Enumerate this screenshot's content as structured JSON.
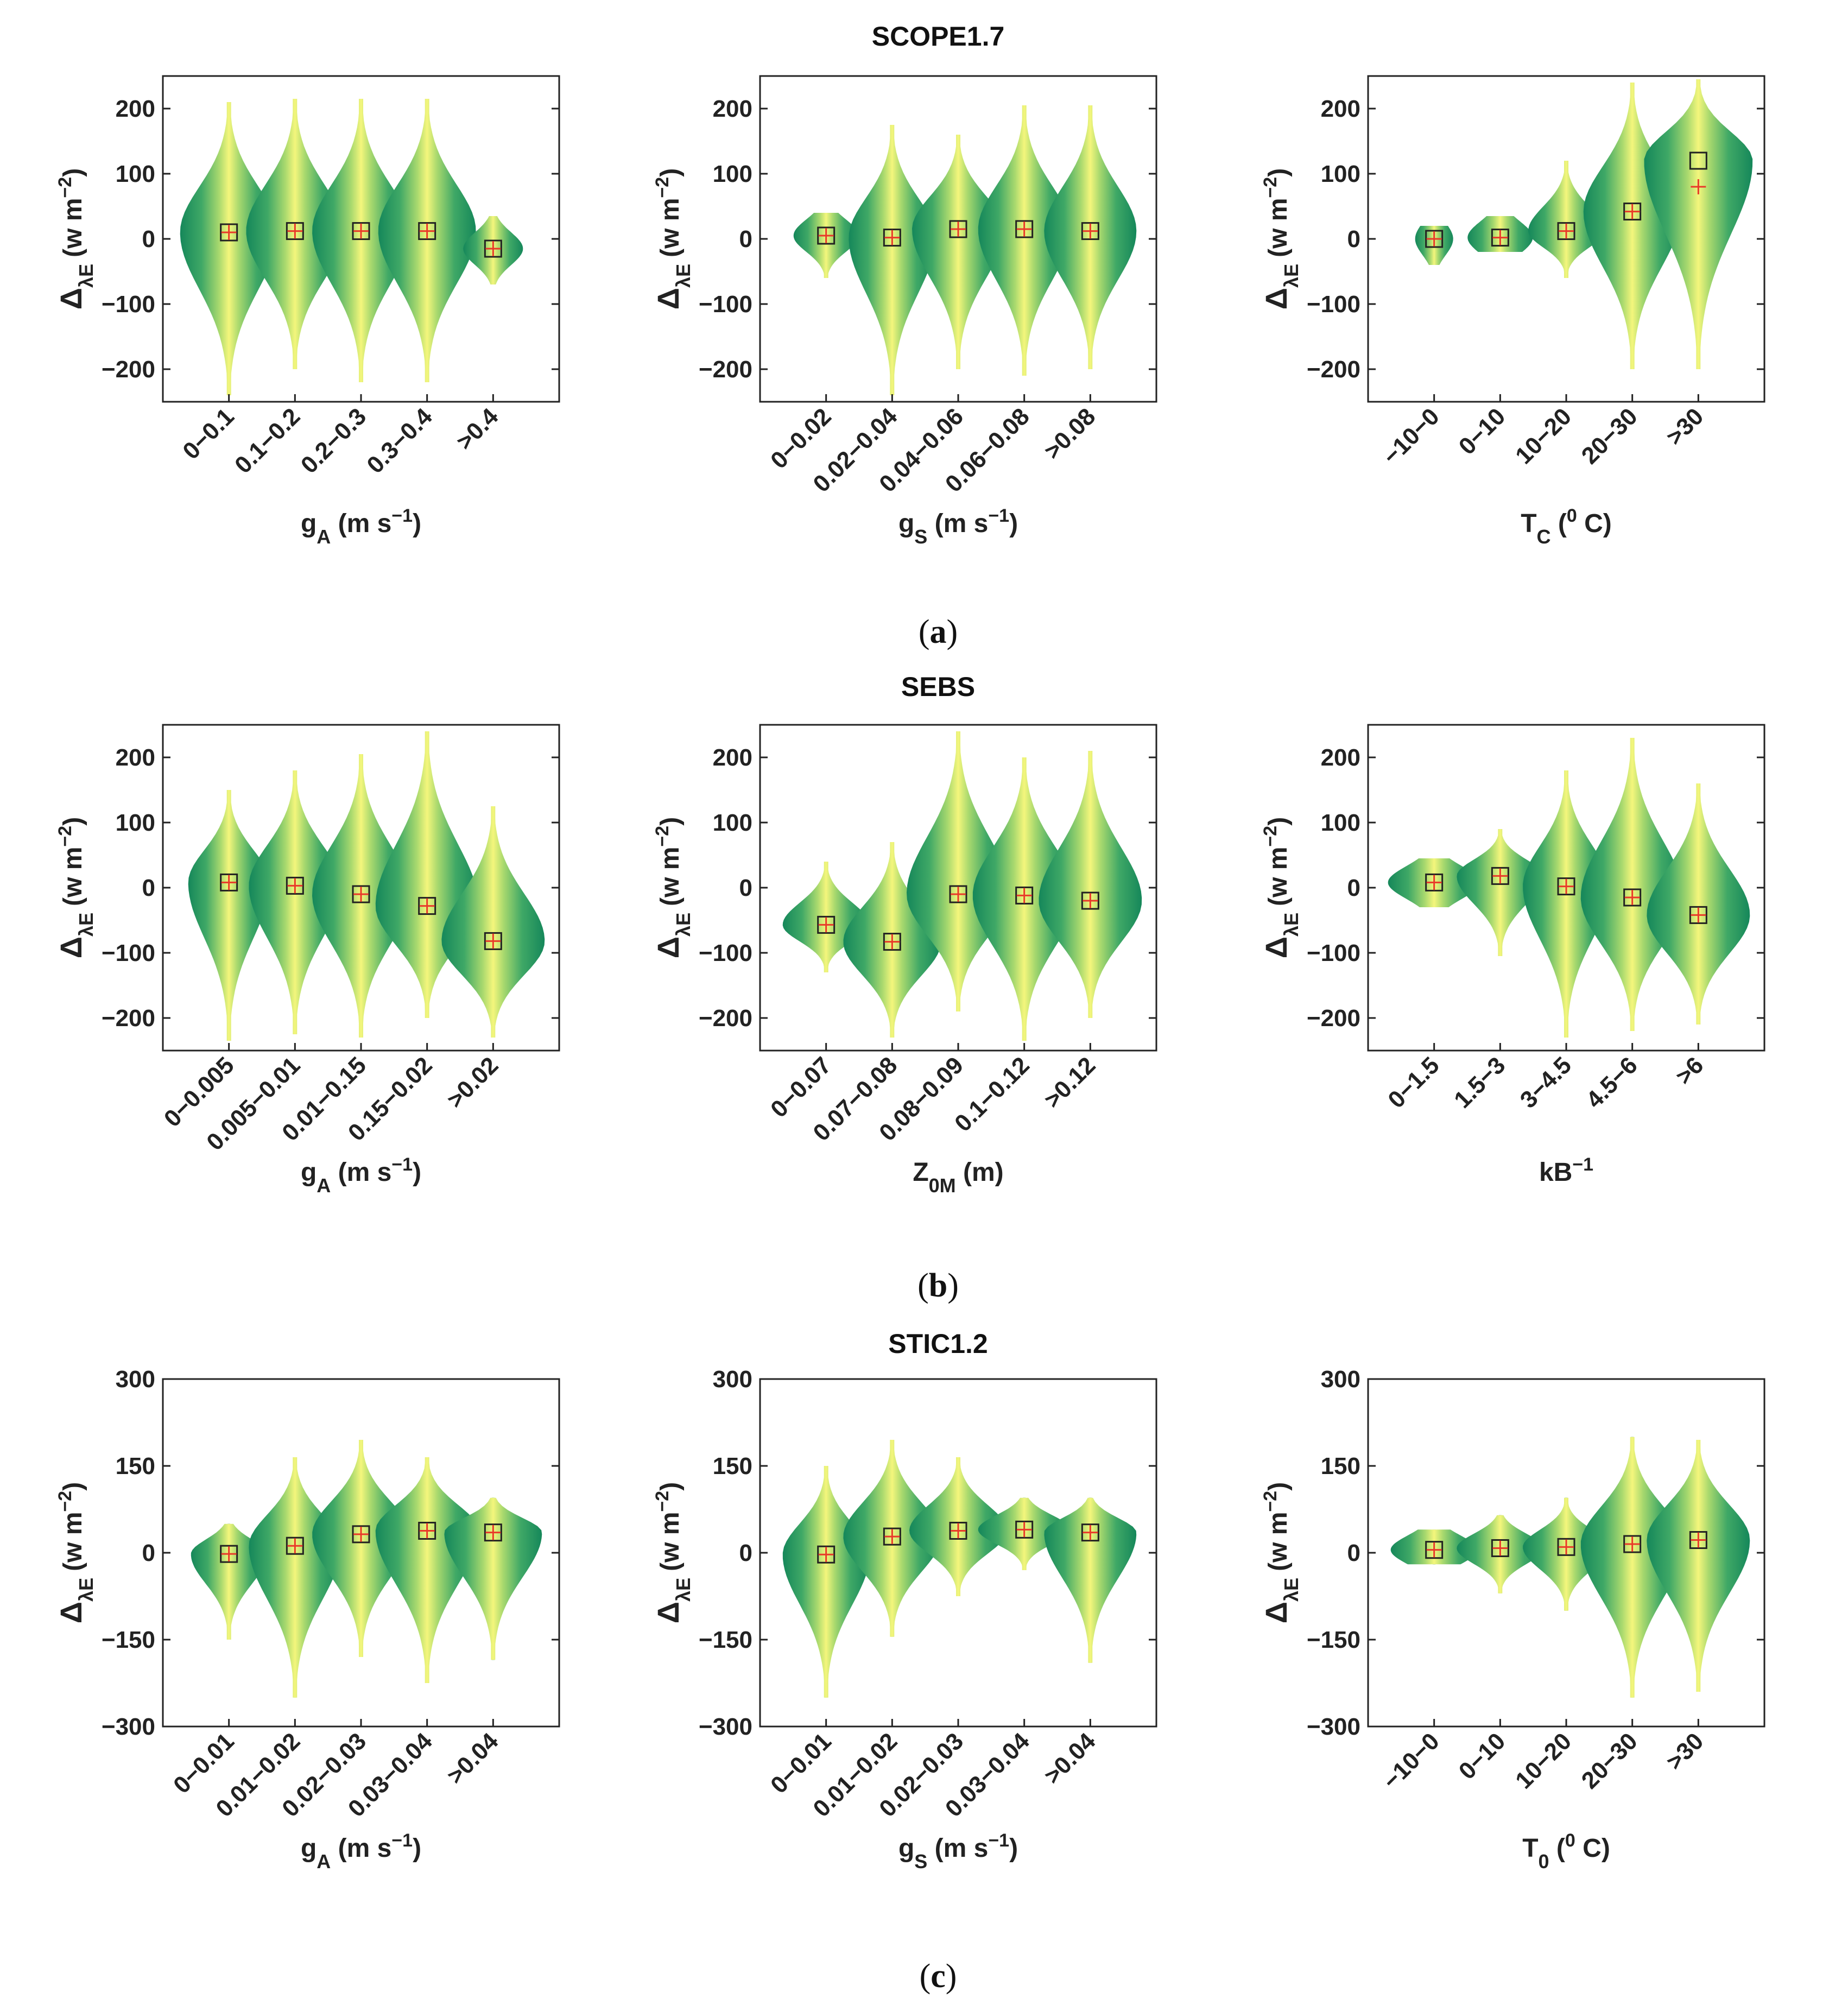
{
  "rows": [
    {
      "title": "SCOPE1.7",
      "caption_prefix": "(",
      "caption_letter": "a",
      "caption_suffix": ")"
    },
    {
      "title": "SEBS",
      "caption_prefix": "(",
      "caption_letter": "b",
      "caption_suffix": ")"
    },
    {
      "title": "STIC1.2",
      "caption_prefix": "(",
      "caption_letter": "c",
      "caption_suffix": ")"
    }
  ],
  "ylabel": {
    "delta": "Δ",
    "sub": "λE",
    "unit_open": "(w m",
    "unit_sup": "−2",
    "unit_close": ")"
  },
  "colors": {
    "violin_edge": "#1a8a5c",
    "violin_mid": "#8fcf6a",
    "violin_center": "#f5f57a",
    "median_box": "#222222",
    "mean_marker": "#e83a2a"
  },
  "chart_data": [
    {
      "type": "violin",
      "row": 0,
      "xlabel": {
        "main": "g",
        "sub": "A",
        "unit_open": " (m s",
        "unit_sup": "−1",
        "unit_close": ")"
      },
      "categories": [
        "0−0.1",
        "0.1−0.2",
        "0.2−0.3",
        "0.3−0.4",
        ">0.4"
      ],
      "ylim": [
        -250,
        250
      ],
      "yticks": [
        -200,
        -100,
        0,
        100,
        200
      ],
      "ytick_labels": [
        "−200",
        "−100",
        "0",
        "100",
        "200"
      ],
      "median": [
        10,
        12,
        12,
        12,
        -15
      ],
      "mean": [
        10,
        12,
        12,
        12,
        -15
      ],
      "min": [
        -240,
        -200,
        -220,
        -220,
        -70
      ],
      "max": [
        210,
        215,
        215,
        215,
        35
      ],
      "spread": [
        90,
        90,
        90,
        90,
        55
      ]
    },
    {
      "type": "violin",
      "row": 0,
      "xlabel": {
        "main": "g",
        "sub": "S",
        "unit_open": " (m s",
        "unit_sup": "−1",
        "unit_close": ")"
      },
      "categories": [
        "0−0.02",
        "0.02−0.04",
        "0.04−0.06",
        "0.06−0.08",
        ">0.08"
      ],
      "ylim": [
        -250,
        250
      ],
      "yticks": [
        -200,
        -100,
        0,
        100,
        200
      ],
      "ytick_labels": [
        "−200",
        "−100",
        "0",
        "100",
        "200"
      ],
      "median": [
        5,
        2,
        15,
        15,
        12
      ],
      "mean": [
        5,
        2,
        15,
        15,
        12
      ],
      "min": [
        -60,
        -240,
        -200,
        -210,
        -200
      ],
      "max": [
        40,
        175,
        160,
        205,
        205
      ],
      "spread": [
        60,
        80,
        85,
        85,
        85
      ]
    },
    {
      "type": "violin",
      "row": 0,
      "xlabel": {
        "main": "T",
        "sub": "C",
        "unit_open": " (",
        "unit_sup": "0",
        "unit_close": " C)"
      },
      "categories": [
        "−10−0",
        "0−10",
        "10−20",
        "20−30",
        ">30"
      ],
      "ylim": [
        -250,
        250
      ],
      "yticks": [
        -200,
        -100,
        0,
        100,
        200
      ],
      "ytick_labels": [
        "−200",
        "−100",
        "0",
        "100",
        "200"
      ],
      "median": [
        0,
        2,
        12,
        42,
        120
      ],
      "mean": [
        0,
        2,
        12,
        42,
        80
      ],
      "min": [
        -40,
        -20,
        -60,
        -200,
        -200
      ],
      "max": [
        20,
        35,
        120,
        240,
        245
      ],
      "spread": [
        35,
        60,
        70,
        90,
        100
      ]
    },
    {
      "type": "violin",
      "row": 1,
      "xlabel": {
        "main": "g",
        "sub": "A",
        "unit_open": " (m s",
        "unit_sup": "−1",
        "unit_close": ")"
      },
      "categories": [
        "0−0.005",
        "0.005−0.01",
        "0.01−0.15",
        "0.15−0.02",
        ">0.02"
      ],
      "ylim": [
        -250,
        250
      ],
      "yticks": [
        -200,
        -100,
        0,
        100,
        200
      ],
      "ytick_labels": [
        "−200",
        "−100",
        "0",
        "100",
        "200"
      ],
      "median": [
        8,
        3,
        -10,
        -28,
        -82
      ],
      "mean": [
        8,
        3,
        -10,
        -28,
        -82
      ],
      "min": [
        -235,
        -225,
        -230,
        -200,
        -230
      ],
      "max": [
        150,
        180,
        205,
        240,
        125
      ],
      "spread": [
        75,
        85,
        90,
        95,
        95
      ]
    },
    {
      "type": "violin",
      "row": 1,
      "xlabel": {
        "main": "Z",
        "sub": "0M",
        "unit_open": " (m)",
        "unit_sup": "",
        "unit_close": ""
      },
      "categories": [
        "0−0.07",
        "0.07−0.08",
        "0.08−0.09",
        "0.1−0.12",
        ">0.12"
      ],
      "ylim": [
        -250,
        250
      ],
      "yticks": [
        -200,
        -100,
        0,
        100,
        200
      ],
      "ytick_labels": [
        "−200",
        "−100",
        "0",
        "100",
        "200"
      ],
      "median": [
        -57,
        -83,
        -10,
        -12,
        -20
      ],
      "mean": [
        -57,
        -83,
        -10,
        -12,
        -20
      ],
      "min": [
        -130,
        -230,
        -190,
        -235,
        -200
      ],
      "max": [
        40,
        70,
        240,
        200,
        210
      ],
      "spread": [
        80,
        90,
        95,
        95,
        95
      ]
    },
    {
      "type": "violin",
      "row": 1,
      "xlabel": {
        "main": "kB",
        "sub": "",
        "unit_open": "",
        "unit_sup": "−1",
        "unit_close": ""
      },
      "categories": [
        "0−1.5",
        "1.5−3",
        "3−4.5",
        "4.5−6",
        ">6"
      ],
      "ylim": [
        -250,
        250
      ],
      "yticks": [
        -200,
        -100,
        0,
        100,
        200
      ],
      "ytick_labels": [
        "−200",
        "−100",
        "0",
        "100",
        "200"
      ],
      "median": [
        8,
        18,
        2,
        -15,
        -42
      ],
      "mean": [
        8,
        18,
        2,
        -15,
        -42
      ],
      "min": [
        -30,
        -105,
        -230,
        -220,
        -210
      ],
      "max": [
        45,
        90,
        180,
        230,
        160
      ],
      "spread": [
        85,
        80,
        80,
        95,
        95
      ]
    },
    {
      "type": "violin",
      "row": 2,
      "xlabel": {
        "main": "g",
        "sub": "A",
        "unit_open": " (m s",
        "unit_sup": "−1",
        "unit_close": ")"
      },
      "categories": [
        "0−0.01",
        "0.01−0.02",
        "0.02−0.03",
        "0.03−0.04",
        ">0.04"
      ],
      "ylim": [
        -300,
        300
      ],
      "yticks": [
        -300,
        -150,
        0,
        150,
        300
      ],
      "ytick_labels": [
        "−300",
        "−150",
        "0",
        "150",
        "300"
      ],
      "median": [
        -2,
        12,
        32,
        38,
        35
      ],
      "mean": [
        -2,
        12,
        32,
        38,
        35
      ],
      "min": [
        -150,
        -250,
        -180,
        -225,
        -185
      ],
      "max": [
        50,
        165,
        195,
        165,
        95
      ],
      "spread": [
        70,
        85,
        90,
        95,
        90
      ]
    },
    {
      "type": "violin",
      "row": 2,
      "xlabel": {
        "main": "g",
        "sub": "S",
        "unit_open": " (m s",
        "unit_sup": "−1",
        "unit_close": ")"
      },
      "categories": [
        "0−0.01",
        "0.01−0.02",
        "0.02−0.03",
        "0.03−0.04",
        ">0.04"
      ],
      "ylim": [
        -300,
        300
      ],
      "yticks": [
        -300,
        -150,
        0,
        150,
        300
      ],
      "ytick_labels": [
        "−300",
        "−150",
        "0",
        "150",
        "300"
      ],
      "median": [
        -3,
        28,
        38,
        40,
        35
      ],
      "mean": [
        -3,
        28,
        38,
        40,
        35
      ],
      "min": [
        -250,
        -145,
        -75,
        -30,
        -190
      ],
      "max": [
        150,
        195,
        165,
        95,
        95
      ],
      "spread": [
        80,
        90,
        90,
        85,
        85
      ]
    },
    {
      "type": "violin",
      "row": 2,
      "xlabel": {
        "main": "T",
        "sub": "0",
        "unit_open": " (",
        "unit_sup": "0",
        "unit_close": " C)"
      },
      "categories": [
        "−10−0",
        "0−10",
        "10−20",
        "20−30",
        ">30"
      ],
      "ylim": [
        -300,
        300
      ],
      "yticks": [
        -300,
        -150,
        0,
        150,
        300
      ],
      "ytick_labels": [
        "−300",
        "−150",
        "0",
        "150",
        "300"
      ],
      "median": [
        5,
        8,
        10,
        15,
        22
      ],
      "mean": [
        5,
        8,
        10,
        15,
        22
      ],
      "min": [
        -20,
        -70,
        -100,
        -250,
        -240
      ],
      "max": [
        40,
        65,
        95,
        200,
        195
      ],
      "spread": [
        80,
        80,
        80,
        95,
        95
      ]
    }
  ]
}
